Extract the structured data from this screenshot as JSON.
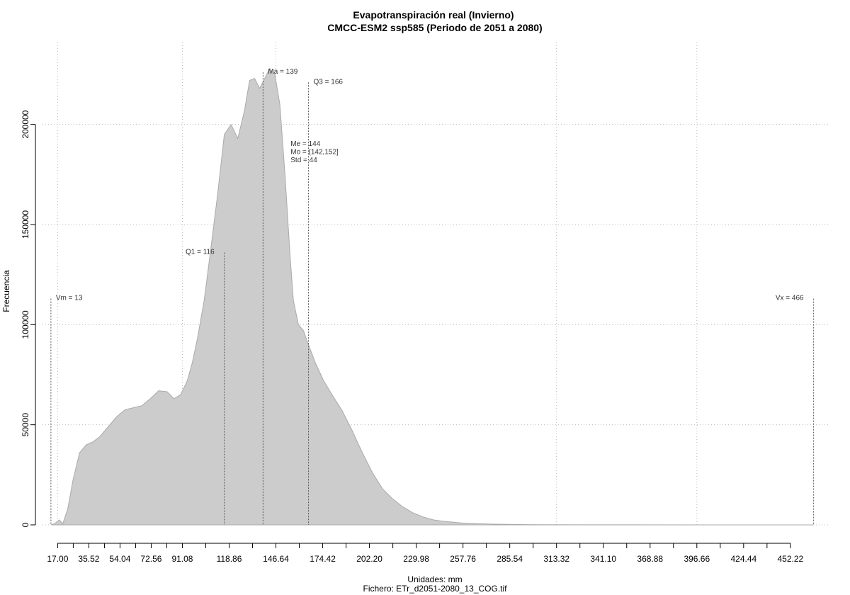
{
  "chart_data": {
    "type": "area",
    "title": "Evapotranspiración real (Invierno)",
    "subtitle": "CMCC-ESM2 ssp585 (Periodo de 2051 a 2080)",
    "xlabel": "Unidades: mm",
    "ylabel": "Frecuencia",
    "footer": "Fichero: ETr_d2051-2080_13_COG.tif",
    "xlim": [
      8,
      475
    ],
    "ylim": [
      0,
      225000
    ],
    "grid": true,
    "x_ticks": [
      17.0,
      35.52,
      54.04,
      72.56,
      91.08,
      118.86,
      146.64,
      174.42,
      202.2,
      229.98,
      257.76,
      285.54,
      313.32,
      341.1,
      368.88,
      396.66,
      424.44,
      452.22
    ],
    "x_tick_labels": [
      "17.00",
      "35.52",
      "54.04",
      "72.56",
      "91.08",
      "118.86",
      "146.64",
      "174.42",
      "202.20",
      "229.98",
      "257.76",
      "285.54",
      "313.32",
      "341.10",
      "368.88",
      "396.66",
      "424.44",
      "452.22"
    ],
    "y_ticks": [
      0,
      50000,
      100000,
      150000,
      200000
    ],
    "y_tick_labels": [
      "0",
      "50000",
      "100000",
      "150000",
      "200000"
    ],
    "x": [
      13,
      15,
      18,
      20,
      23,
      26,
      30,
      34,
      38,
      42,
      47,
      52,
      57,
      62,
      67,
      72,
      77,
      82,
      86,
      90,
      94,
      97,
      100,
      104,
      108,
      112,
      116,
      120,
      124,
      128,
      131,
      134,
      137,
      140,
      143,
      146,
      149,
      152,
      155,
      157,
      160,
      163,
      166,
      170,
      175,
      180,
      186,
      192,
      198,
      204,
      210,
      216,
      222,
      228,
      234,
      240,
      246,
      252,
      258,
      266,
      274,
      284,
      296,
      310,
      330,
      360,
      400,
      440,
      466
    ],
    "y": [
      0,
      500,
      2500,
      500,
      8000,
      22000,
      36000,
      40000,
      41500,
      44000,
      49000,
      54000,
      57500,
      58500,
      59500,
      63000,
      67000,
      66500,
      63000,
      65000,
      72000,
      81000,
      93000,
      112000,
      138000,
      165000,
      195000,
      200000,
      193000,
      207000,
      222000,
      223000,
      218000,
      223000,
      228000,
      225000,
      210000,
      175000,
      135000,
      112000,
      100000,
      97000,
      90000,
      81000,
      72000,
      65000,
      57000,
      47000,
      36000,
      26000,
      18000,
      13000,
      9000,
      6000,
      4000,
      2500,
      1800,
      1300,
      900,
      600,
      400,
      250,
      150,
      80,
      40,
      20,
      10,
      5,
      0
    ],
    "annotations": [
      {
        "label": "Vm = 13",
        "x": 13,
        "line_top": 113000,
        "text_align": "start"
      },
      {
        "label": "Q1 = 116",
        "x": 116,
        "line_top": 136000,
        "text_align": "end"
      },
      {
        "label": "Ma = 139",
        "x": 139,
        "line_top": 226000,
        "text_align": "start"
      },
      {
        "label": "Q3 = 166",
        "x": 166,
        "line_top": 221000,
        "text_align": "start"
      },
      {
        "label": "Vx = 466",
        "x": 466,
        "line_top": 113000,
        "text_align": "end"
      }
    ],
    "stats": [
      "Me = 144",
      "Mo = (142,152]",
      "Std = 44"
    ],
    "fill_color": "#cccccc",
    "line_color": "#555555",
    "grid_color": "#bbbbbb"
  }
}
